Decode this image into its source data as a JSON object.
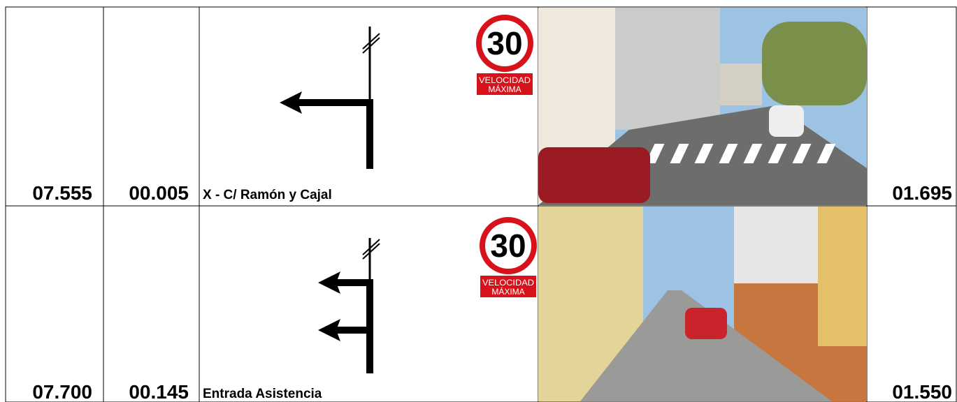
{
  "table": {
    "rows": [
      {
        "km": "07.555",
        "partial": "00.005",
        "description": "X - C/ Ramón y Cajal",
        "sign": {
          "limit": "30",
          "line1": "VELOCIDAD",
          "line2": "MÁXIMA"
        },
        "distance": "01.695"
      },
      {
        "km": "07.700",
        "partial": "00.145",
        "description": "Entrada Asistencia",
        "sign": {
          "limit": "30",
          "line1": "VELOCIDAD",
          "line2": "MÁXIMA"
        },
        "distance": "01.550"
      }
    ]
  }
}
